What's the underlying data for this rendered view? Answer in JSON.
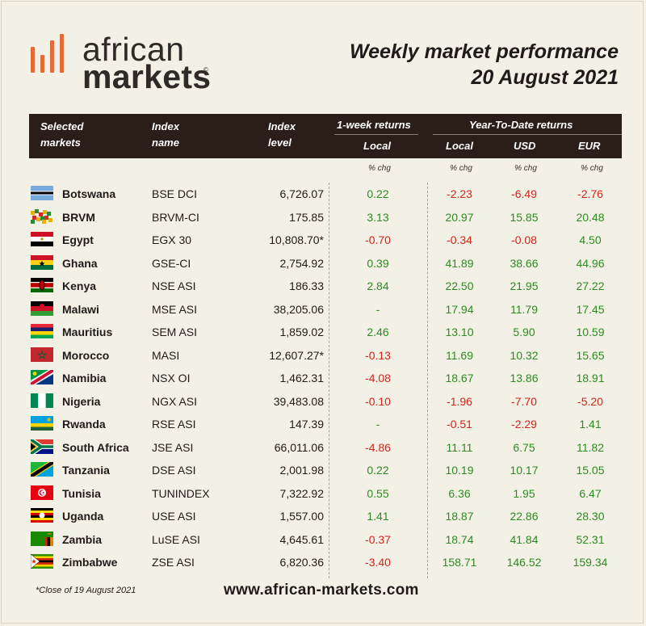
{
  "logo": {
    "line1": "african",
    "line2": "markets",
    "reg": "©"
  },
  "title": {
    "line1": "Weekly market performance",
    "line2": "20 August 2021"
  },
  "header": {
    "selected": "Selected",
    "markets": "markets",
    "index": "Index",
    "name": "name",
    "index2": "Index",
    "level": "level",
    "week_returns": "1-week returns",
    "local": "Local",
    "ytd_returns": "Year-To-Date returns",
    "ytd_local": "Local",
    "usd": "USD",
    "eur": "EUR"
  },
  "subheader": {
    "c1": "% chg",
    "c2": "% chg",
    "c3": "% chg",
    "c4": "% chg"
  },
  "rows": [
    {
      "country": "Botswana",
      "index": "BSE DCI",
      "level": "6,726.07",
      "wk": "0.22",
      "ytd_local": "-2.23",
      "ytd_usd": "-6.49",
      "ytd_eur": "-2.76",
      "flag": "botswana"
    },
    {
      "country": "BRVM",
      "index": "BRVM-CI",
      "level": "175.85",
      "wk": "3.13",
      "ytd_local": "20.97",
      "ytd_usd": "15.85",
      "ytd_eur": "20.48",
      "flag": "brvm"
    },
    {
      "country": "Egypt",
      "index": "EGX 30",
      "level": "10,808.70*",
      "wk": "-0.70",
      "ytd_local": "-0.34",
      "ytd_usd": "-0.08",
      "ytd_eur": "4.50",
      "flag": "egypt"
    },
    {
      "country": "Ghana",
      "index": "GSE-CI",
      "level": "2,754.92",
      "wk": "0.39",
      "ytd_local": "41.89",
      "ytd_usd": "38.66",
      "ytd_eur": "44.96",
      "flag": "ghana"
    },
    {
      "country": "Kenya",
      "index": "NSE ASI",
      "level": "186.33",
      "wk": "2.84",
      "ytd_local": "22.50",
      "ytd_usd": "21.95",
      "ytd_eur": "27.22",
      "flag": "kenya"
    },
    {
      "country": "Malawi",
      "index": "MSE ASI",
      "level": "38,205.06",
      "wk": "-",
      "ytd_local": "17.94",
      "ytd_usd": "11.79",
      "ytd_eur": "17.45",
      "flag": "malawi"
    },
    {
      "country": "Mauritius",
      "index": "SEM ASI",
      "level": "1,859.02",
      "wk": "2.46",
      "ytd_local": "13.10",
      "ytd_usd": "5.90",
      "ytd_eur": "10.59",
      "flag": "mauritius"
    },
    {
      "country": "Morocco",
      "index": "MASI",
      "level": "12,607.27*",
      "wk": "-0.13",
      "ytd_local": "11.69",
      "ytd_usd": "10.32",
      "ytd_eur": "15.65",
      "flag": "morocco"
    },
    {
      "country": "Namibia",
      "index": "NSX OI",
      "level": "1,462.31",
      "wk": "-4.08",
      "ytd_local": "18.67",
      "ytd_usd": "13.86",
      "ytd_eur": "18.91",
      "flag": "namibia"
    },
    {
      "country": "Nigeria",
      "index": "NGX ASI",
      "level": "39,483.08",
      "wk": "-0.10",
      "ytd_local": "-1.96",
      "ytd_usd": "-7.70",
      "ytd_eur": "-5.20",
      "flag": "nigeria"
    },
    {
      "country": "Rwanda",
      "index": "RSE ASI",
      "level": "147.39",
      "wk": "-",
      "ytd_local": "-0.51",
      "ytd_usd": "-2.29",
      "ytd_eur": "1.41",
      "flag": "rwanda"
    },
    {
      "country": "South Africa",
      "index": "JSE ASI",
      "level": "66,011.06",
      "wk": "-4.86",
      "ytd_local": "11.11",
      "ytd_usd": "6.75",
      "ytd_eur": "11.82",
      "flag": "southafrica"
    },
    {
      "country": "Tanzania",
      "index": "DSE ASI",
      "level": "2,001.98",
      "wk": "0.22",
      "ytd_local": "10.19",
      "ytd_usd": "10.17",
      "ytd_eur": "15.05",
      "flag": "tanzania"
    },
    {
      "country": "Tunisia",
      "index": "TUNINDEX",
      "level": "7,322.92",
      "wk": "0.55",
      "ytd_local": "6.36",
      "ytd_usd": "1.95",
      "ytd_eur": "6.47",
      "flag": "tunisia"
    },
    {
      "country": "Uganda",
      "index": "USE ASI",
      "level": "1,557.00",
      "wk": "1.41",
      "ytd_local": "18.87",
      "ytd_usd": "22.86",
      "ytd_eur": "28.30",
      "flag": "uganda"
    },
    {
      "country": "Zambia",
      "index": "LuSE ASI",
      "level": "4,645.61",
      "wk": "-0.37",
      "ytd_local": "18.74",
      "ytd_usd": "41.84",
      "ytd_eur": "52.31",
      "flag": "zambia"
    },
    {
      "country": "Zimbabwe",
      "index": "ZSE ASI",
      "level": "6,820.36",
      "wk": "-3.40",
      "ytd_local": "158.71",
      "ytd_usd": "146.52",
      "ytd_eur": "159.34",
      "flag": "zimbabwe"
    }
  ],
  "footer": {
    "note": "*Close of 19 August 2021",
    "url": "www.african-markets.com"
  },
  "colors": {
    "positive": "#2e8a24",
    "negative": "#d4241c",
    "header_bg": "#2b1d17",
    "accent": "#e06c3a"
  }
}
